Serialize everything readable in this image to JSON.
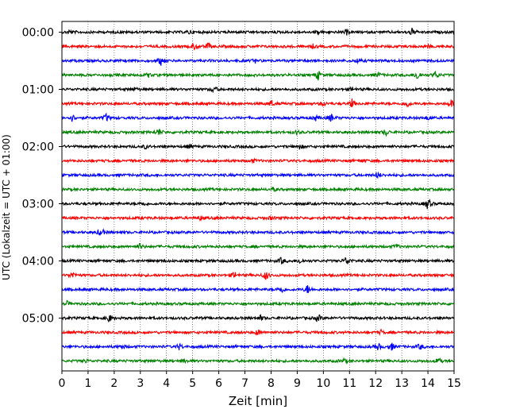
{
  "chart_data": {
    "type": "line",
    "title": "",
    "xlabel": "Zeit  [min]",
    "ylabel": "UTC (Lokalzeit = UTC + 01:00)",
    "xlim": [
      0,
      15
    ],
    "x_ticks": [
      "0",
      "1",
      "2",
      "3",
      "4",
      "5",
      "6",
      "7",
      "8",
      "9",
      "10",
      "11",
      "12",
      "13",
      "14",
      "15"
    ],
    "y_ticks": [
      "00:00",
      "01:00",
      "02:00",
      "03:00",
      "04:00",
      "05:00"
    ],
    "grid": "vertical dotted at each minute",
    "color_cycle": [
      "#000000",
      "#ff0000",
      "#0000ff",
      "#008000"
    ],
    "traces": [
      {
        "time": "00:00",
        "color": "#000000",
        "events": [
          {
            "x": 0.3,
            "a": 0.6
          },
          {
            "x": 4.9,
            "a": 0.5
          },
          {
            "x": 9.8,
            "a": 0.5
          },
          {
            "x": 10.9,
            "a": 0.6
          },
          {
            "x": 13.4,
            "a": 1.0
          }
        ]
      },
      {
        "time": "00:15",
        "color": "#ff0000",
        "events": [
          {
            "x": 5.1,
            "a": 0.9
          },
          {
            "x": 5.6,
            "a": 0.8
          },
          {
            "x": 9.6,
            "a": 0.4
          },
          {
            "x": 14.0,
            "a": 0.4
          }
        ]
      },
      {
        "time": "00:30",
        "color": "#0000ff",
        "events": [
          {
            "x": 3.8,
            "a": 1.2
          },
          {
            "x": 7.4,
            "a": 0.4
          },
          {
            "x": 11.3,
            "a": 0.5
          }
        ]
      },
      {
        "time": "00:45",
        "color": "#008000",
        "events": [
          {
            "x": 3.3,
            "a": 0.5
          },
          {
            "x": 9.8,
            "a": 1.2
          },
          {
            "x": 12.1,
            "a": 0.5
          },
          {
            "x": 13.6,
            "a": 1.4
          },
          {
            "x": 14.3,
            "a": 0.9
          }
        ]
      },
      {
        "time": "01:00",
        "color": "#000000",
        "events": [
          {
            "x": 2.8,
            "a": 0.5
          },
          {
            "x": 5.8,
            "a": 0.9
          },
          {
            "x": 11.1,
            "a": 0.5
          }
        ]
      },
      {
        "time": "01:15",
        "color": "#ff0000",
        "events": [
          {
            "x": 8.0,
            "a": 0.8
          },
          {
            "x": 10.0,
            "a": 0.6
          },
          {
            "x": 11.1,
            "a": 1.1
          },
          {
            "x": 13.2,
            "a": 0.9
          },
          {
            "x": 14.9,
            "a": 1.0
          }
        ]
      },
      {
        "time": "01:30",
        "color": "#0000ff",
        "events": [
          {
            "x": 0.4,
            "a": 0.9
          },
          {
            "x": 1.7,
            "a": 1.0
          },
          {
            "x": 9.7,
            "a": 0.7
          },
          {
            "x": 10.3,
            "a": 1.0
          },
          {
            "x": 14.0,
            "a": 0.5
          }
        ]
      },
      {
        "time": "01:45",
        "color": "#008000",
        "events": [
          {
            "x": 3.7,
            "a": 1.0
          },
          {
            "x": 9.0,
            "a": 0.6
          },
          {
            "x": 12.4,
            "a": 0.8
          }
        ]
      },
      {
        "time": "02:00",
        "color": "#000000",
        "events": [
          {
            "x": 3.2,
            "a": 0.5
          },
          {
            "x": 4.9,
            "a": 0.5
          },
          {
            "x": 9.1,
            "a": 0.6
          }
        ]
      },
      {
        "time": "02:15",
        "color": "#ff0000",
        "events": [
          {
            "x": 7.3,
            "a": 0.5
          },
          {
            "x": 11.5,
            "a": 0.4
          }
        ]
      },
      {
        "time": "02:30",
        "color": "#0000ff",
        "events": [
          {
            "x": 12.1,
            "a": 0.8
          }
        ]
      },
      {
        "time": "02:45",
        "color": "#008000",
        "events": [
          {
            "x": 8.1,
            "a": 0.4
          }
        ]
      },
      {
        "time": "03:00",
        "color": "#000000",
        "events": [
          {
            "x": 3.1,
            "a": 0.5
          },
          {
            "x": 14.0,
            "a": 1.6
          }
        ]
      },
      {
        "time": "03:15",
        "color": "#ff0000",
        "events": [
          {
            "x": 5.3,
            "a": 0.5
          },
          {
            "x": 8.0,
            "a": 0.4
          }
        ]
      },
      {
        "time": "03:30",
        "color": "#0000ff",
        "events": [
          {
            "x": 1.5,
            "a": 1.2
          }
        ]
      },
      {
        "time": "03:45",
        "color": "#008000",
        "events": [
          {
            "x": 3.0,
            "a": 0.8
          },
          {
            "x": 12.8,
            "a": 0.5
          }
        ]
      },
      {
        "time": "04:00",
        "color": "#000000",
        "events": [
          {
            "x": 8.4,
            "a": 0.9
          },
          {
            "x": 9.1,
            "a": 0.6
          },
          {
            "x": 10.9,
            "a": 1.3
          }
        ]
      },
      {
        "time": "04:15",
        "color": "#ff0000",
        "events": [
          {
            "x": 0.4,
            "a": 0.9
          },
          {
            "x": 6.6,
            "a": 0.9
          },
          {
            "x": 7.8,
            "a": 1.2
          }
        ]
      },
      {
        "time": "04:30",
        "color": "#0000ff",
        "events": [
          {
            "x": 8.4,
            "a": 1.0
          },
          {
            "x": 9.4,
            "a": 1.1
          }
        ]
      },
      {
        "time": "04:45",
        "color": "#008000",
        "events": [
          {
            "x": 0.2,
            "a": 0.5
          }
        ]
      },
      {
        "time": "05:00",
        "color": "#000000",
        "events": [
          {
            "x": 1.8,
            "a": 1.1
          },
          {
            "x": 7.6,
            "a": 0.6
          },
          {
            "x": 9.8,
            "a": 1.0
          }
        ]
      },
      {
        "time": "05:15",
        "color": "#ff0000",
        "events": [
          {
            "x": 7.5,
            "a": 0.8
          },
          {
            "x": 12.2,
            "a": 0.5
          }
        ]
      },
      {
        "time": "05:30",
        "color": "#0000ff",
        "events": [
          {
            "x": 2.3,
            "a": 0.6
          },
          {
            "x": 4.5,
            "a": 0.8
          },
          {
            "x": 12.1,
            "a": 0.9
          },
          {
            "x": 12.6,
            "a": 1.0
          },
          {
            "x": 13.7,
            "a": 0.8
          }
        ]
      },
      {
        "time": "05:45",
        "color": "#008000",
        "events": [
          {
            "x": 0.9,
            "a": 0.4
          },
          {
            "x": 4.7,
            "a": 0.4
          },
          {
            "x": 10.8,
            "a": 0.5
          },
          {
            "x": 14.4,
            "a": 0.8
          }
        ]
      }
    ]
  }
}
